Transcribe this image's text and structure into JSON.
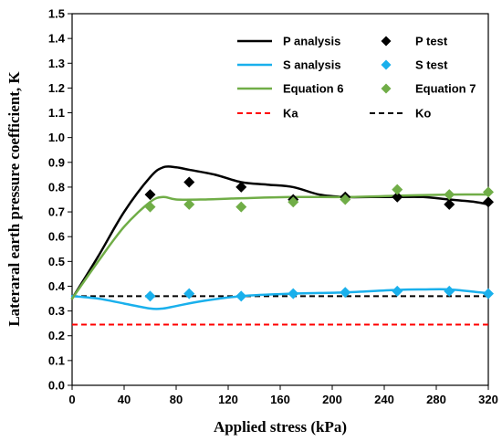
{
  "chart_data": {
    "type": "line",
    "xlabel": "Applied stress (kPa)",
    "ylabel": "Lateraral earth pressure coefficient, K",
    "xlim": [
      0,
      320
    ],
    "ylim": [
      0,
      1.5
    ],
    "xticks": [
      0,
      40,
      80,
      120,
      160,
      200,
      240,
      280,
      320
    ],
    "yticks": [
      0.0,
      0.1,
      0.2,
      0.3,
      0.4,
      0.5,
      0.6,
      0.7,
      0.8,
      0.9,
      1.0,
      1.1,
      1.2,
      1.3,
      1.4,
      1.5
    ],
    "grid": false,
    "legend_position": "top-right",
    "series": [
      {
        "name": "P analysis",
        "kind": "line",
        "color": "#000000",
        "x": [
          0,
          20,
          40,
          60,
          70,
          80,
          90,
          110,
          130,
          150,
          170,
          190,
          210,
          230,
          250,
          270,
          290,
          310,
          320
        ],
        "y": [
          0.35,
          0.52,
          0.7,
          0.84,
          0.88,
          0.88,
          0.87,
          0.85,
          0.82,
          0.81,
          0.8,
          0.77,
          0.76,
          0.76,
          0.76,
          0.76,
          0.75,
          0.74,
          0.73
        ]
      },
      {
        "name": "P test",
        "kind": "marker",
        "marker": "diamond",
        "color": "#000000",
        "x": [
          60,
          90,
          130,
          170,
          210,
          250,
          290,
          320
        ],
        "y": [
          0.77,
          0.82,
          0.8,
          0.75,
          0.76,
          0.76,
          0.73,
          0.74
        ]
      },
      {
        "name": "S analysis",
        "kind": "line",
        "color": "#1ab0ec",
        "x": [
          0,
          20,
          40,
          60,
          70,
          80,
          100,
          130,
          170,
          210,
          250,
          270,
          290,
          310,
          320
        ],
        "y": [
          0.36,
          0.35,
          0.33,
          0.31,
          0.31,
          0.32,
          0.34,
          0.36,
          0.37,
          0.375,
          0.385,
          0.387,
          0.387,
          0.377,
          0.372
        ]
      },
      {
        "name": "S test",
        "kind": "marker",
        "marker": "diamond",
        "color": "#1ab0ec",
        "x": [
          60,
          90,
          130,
          170,
          210,
          250,
          290,
          320
        ],
        "y": [
          0.36,
          0.37,
          0.36,
          0.37,
          0.375,
          0.38,
          0.38,
          0.37
        ]
      },
      {
        "name": "Equation 6",
        "kind": "line",
        "color": "#70ad47",
        "x": [
          0,
          20,
          40,
          60,
          70,
          80,
          100,
          130,
          170,
          210,
          250,
          290,
          320
        ],
        "y": [
          0.35,
          0.5,
          0.64,
          0.74,
          0.76,
          0.75,
          0.75,
          0.755,
          0.76,
          0.76,
          0.765,
          0.77,
          0.77
        ]
      },
      {
        "name": "Equation 7",
        "kind": "marker",
        "marker": "diamond",
        "color": "#70ad47",
        "x": [
          60,
          90,
          130,
          170,
          210,
          250,
          290,
          320
        ],
        "y": [
          0.72,
          0.73,
          0.72,
          0.74,
          0.75,
          0.79,
          0.77,
          0.78
        ]
      },
      {
        "name": "Ka",
        "kind": "dashed",
        "color": "#ff0000",
        "x": [
          0,
          320
        ],
        "y": [
          0.245,
          0.245
        ]
      },
      {
        "name": "Ko",
        "kind": "dashed",
        "color": "#000000",
        "x": [
          0,
          320
        ],
        "y": [
          0.36,
          0.36
        ]
      }
    ]
  }
}
